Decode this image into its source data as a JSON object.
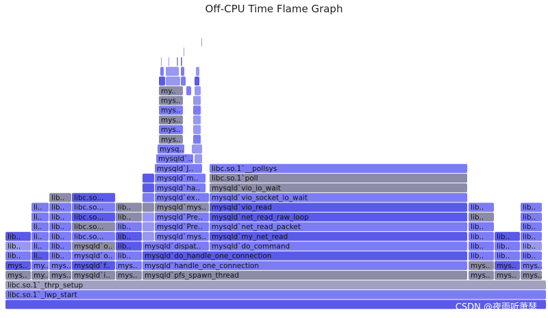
{
  "title": "Off-CPU Time Flame Graph",
  "watermark": "CSDN @夜雨听萧瑟",
  "colors": {
    "dark": "#5a5ae8",
    "mid": "#7c7cf5",
    "light": "#9898f0",
    "gray": "#8c8ca8",
    "gray2": "#a0a0c0"
  },
  "chart_data": {
    "type": "flamegraph",
    "title": "Off-CPU Time Flame Graph",
    "total_width": 800,
    "frames": [
      {
        "d": 0,
        "s": 8,
        "w": 790,
        "label": "",
        "c": "dark"
      },
      {
        "d": 1,
        "s": 8,
        "w": 790,
        "label": "libc.so.1`_lwp_start",
        "c": "mid"
      },
      {
        "d": 2,
        "s": 8,
        "w": 790,
        "label": "libc.so.1`_thrp_setup",
        "c": "gray2"
      },
      {
        "d": 3,
        "s": 8,
        "w": 38,
        "label": "mys..",
        "c": "gray"
      },
      {
        "d": 3,
        "s": 46,
        "w": 26,
        "label": "my..",
        "c": "gray"
      },
      {
        "d": 3,
        "s": 72,
        "w": 33,
        "label": "mys..",
        "c": "gray"
      },
      {
        "d": 3,
        "s": 105,
        "w": 64,
        "label": "mysqld`i..",
        "c": "gray"
      },
      {
        "d": 3,
        "s": 169,
        "w": 39,
        "label": "mys..",
        "c": "gray"
      },
      {
        "d": 3,
        "s": 208,
        "w": 475,
        "label": "mysqld`pfs_spawn_thread",
        "c": "gray"
      },
      {
        "d": 3,
        "s": 684,
        "w": 38,
        "label": "mys..",
        "c": "gray"
      },
      {
        "d": 3,
        "s": 722,
        "w": 38,
        "label": "mys..",
        "c": "gray"
      },
      {
        "d": 3,
        "s": 760,
        "w": 32,
        "label": "mys..",
        "c": "gray"
      },
      {
        "d": 4,
        "s": 8,
        "w": 38,
        "label": "mys..",
        "c": "dark"
      },
      {
        "d": 4,
        "s": 46,
        "w": 26,
        "label": "my..",
        "c": "mid"
      },
      {
        "d": 4,
        "s": 72,
        "w": 33,
        "label": "mys..",
        "c": "mid"
      },
      {
        "d": 4,
        "s": 105,
        "w": 64,
        "label": "mysqld`f..",
        "c": "dark"
      },
      {
        "d": 4,
        "s": 169,
        "w": 39,
        "label": "mys..",
        "c": "mid"
      },
      {
        "d": 4,
        "s": 208,
        "w": 475,
        "label": "mysqld`handle_one_connection",
        "c": "mid"
      },
      {
        "d": 4,
        "s": 684,
        "w": 38,
        "label": "mys..",
        "c": "gray"
      },
      {
        "d": 4,
        "s": 722,
        "w": 38,
        "label": "mys..",
        "c": "dark"
      },
      {
        "d": 4,
        "s": 760,
        "w": 32,
        "label": "mys..",
        "c": "mid"
      },
      {
        "d": 5,
        "s": 8,
        "w": 38,
        "label": "lib..",
        "c": "mid"
      },
      {
        "d": 5,
        "s": 46,
        "w": 26,
        "label": "li..",
        "c": "dark"
      },
      {
        "d": 5,
        "s": 72,
        "w": 33,
        "label": "lib..",
        "c": "mid"
      },
      {
        "d": 5,
        "s": 105,
        "w": 64,
        "label": "mysqld`o..",
        "c": "mid"
      },
      {
        "d": 5,
        "s": 169,
        "w": 39,
        "label": "lib..",
        "c": "mid"
      },
      {
        "d": 5,
        "s": 208,
        "w": 475,
        "label": "mysqld`do_handle_one_connection",
        "c": "dark"
      },
      {
        "d": 5,
        "s": 684,
        "w": 38,
        "label": "lib..",
        "c": "mid"
      },
      {
        "d": 5,
        "s": 722,
        "w": 38,
        "label": "lib..",
        "c": "mid"
      },
      {
        "d": 5,
        "s": 760,
        "w": 32,
        "label": "lib..",
        "c": "mid"
      },
      {
        "d": 6,
        "s": 8,
        "w": 38,
        "label": "lib..",
        "c": "light"
      },
      {
        "d": 6,
        "s": 46,
        "w": 26,
        "label": "li..",
        "c": "mid"
      },
      {
        "d": 6,
        "s": 72,
        "w": 33,
        "label": "lib..",
        "c": "mid"
      },
      {
        "d": 6,
        "s": 105,
        "w": 64,
        "label": "mysqld`o..",
        "c": "gray"
      },
      {
        "d": 6,
        "s": 169,
        "w": 39,
        "label": "lib..",
        "c": "dark"
      },
      {
        "d": 6,
        "s": 208,
        "w": 98,
        "label": "mysqld`dispat..",
        "c": "mid"
      },
      {
        "d": 6,
        "s": 306,
        "w": 377,
        "label": "mysqld`do_command",
        "c": "mid"
      },
      {
        "d": 6,
        "s": 684,
        "w": 38,
        "label": "lib..",
        "c": "mid"
      },
      {
        "d": 6,
        "s": 722,
        "w": 38,
        "label": "lib..",
        "c": "mid"
      },
      {
        "d": 6,
        "s": 760,
        "w": 32,
        "label": "lib..",
        "c": "light"
      },
      {
        "d": 7,
        "s": 8,
        "w": 38,
        "label": "lib..",
        "c": "dark"
      },
      {
        "d": 7,
        "s": 46,
        "w": 26,
        "label": "li..",
        "c": "mid"
      },
      {
        "d": 7,
        "s": 72,
        "w": 33,
        "label": "lib..",
        "c": "mid"
      },
      {
        "d": 7,
        "s": 105,
        "w": 64,
        "label": "libc.so...",
        "c": "mid"
      },
      {
        "d": 7,
        "s": 169,
        "w": 39,
        "label": "lib..",
        "c": "dark"
      },
      {
        "d": 7,
        "s": 208,
        "w": 18,
        "label": "",
        "c": "light"
      },
      {
        "d": 7,
        "s": 226,
        "w": 80,
        "label": "mysqld`mys..",
        "c": "mid"
      },
      {
        "d": 7,
        "s": 306,
        "w": 377,
        "label": "mysqld`my_net_read",
        "c": "dark"
      },
      {
        "d": 7,
        "s": 684,
        "w": 38,
        "label": "lib..",
        "c": "mid"
      },
      {
        "d": 7,
        "s": 722,
        "w": 38,
        "label": "lib..",
        "c": "dark"
      },
      {
        "d": 7,
        "s": 760,
        "w": 32,
        "label": "lib..",
        "c": "mid"
      },
      {
        "d": 8,
        "s": 46,
        "w": 26,
        "label": "li..",
        "c": "mid"
      },
      {
        "d": 8,
        "s": 72,
        "w": 33,
        "label": "lib..",
        "c": "mid"
      },
      {
        "d": 8,
        "s": 105,
        "w": 64,
        "label": "libc.so...",
        "c": "gray"
      },
      {
        "d": 8,
        "s": 169,
        "w": 39,
        "label": "lib..",
        "c": "mid"
      },
      {
        "d": 8,
        "s": 208,
        "w": 18,
        "label": "",
        "c": "light"
      },
      {
        "d": 8,
        "s": 226,
        "w": 80,
        "label": "mysqld`Pre..",
        "c": "mid"
      },
      {
        "d": 8,
        "s": 306,
        "w": 377,
        "label": "mysqld`net_read_packet",
        "c": "mid"
      },
      {
        "d": 8,
        "s": 684,
        "w": 38,
        "label": "lib..",
        "c": "mid"
      },
      {
        "d": 8,
        "s": 760,
        "w": 32,
        "label": "lib..",
        "c": "mid"
      },
      {
        "d": 9,
        "s": 46,
        "w": 26,
        "label": "li..",
        "c": "mid"
      },
      {
        "d": 9,
        "s": 72,
        "w": 33,
        "label": "lib..",
        "c": "mid"
      },
      {
        "d": 9,
        "s": 105,
        "w": 64,
        "label": "libc.so...",
        "c": "dark"
      },
      {
        "d": 9,
        "s": 169,
        "w": 39,
        "label": "lib..",
        "c": "gray"
      },
      {
        "d": 9,
        "s": 208,
        "w": 18,
        "label": "",
        "c": "light"
      },
      {
        "d": 9,
        "s": 226,
        "w": 80,
        "label": "mysqld`Pre..",
        "c": "mid"
      },
      {
        "d": 9,
        "s": 306,
        "w": 377,
        "label": "mysqld`net_read_raw_loop",
        "c": "dark"
      },
      {
        "d": 9,
        "s": 684,
        "w": 38,
        "label": "lib..",
        "c": "gray"
      },
      {
        "d": 9,
        "s": 760,
        "w": 32,
        "label": "lib..",
        "c": "mid"
      },
      {
        "d": 10,
        "s": 46,
        "w": 26,
        "label": "li..",
        "c": "mid"
      },
      {
        "d": 10,
        "s": 72,
        "w": 33,
        "label": "lib..",
        "c": "mid"
      },
      {
        "d": 10,
        "s": 105,
        "w": 64,
        "label": "libc.so...",
        "c": "mid"
      },
      {
        "d": 10,
        "s": 169,
        "w": 39,
        "label": "lib..",
        "c": "gray"
      },
      {
        "d": 10,
        "s": 208,
        "w": 18,
        "label": "",
        "c": "gray"
      },
      {
        "d": 10,
        "s": 226,
        "w": 80,
        "label": "mysqld`mys..",
        "c": "gray"
      },
      {
        "d": 10,
        "s": 306,
        "w": 377,
        "label": "mysqld`vio_read",
        "c": "dark"
      },
      {
        "d": 10,
        "s": 684,
        "w": 38,
        "label": "lib..",
        "c": "mid"
      },
      {
        "d": 10,
        "s": 760,
        "w": 32,
        "label": "lib..",
        "c": "mid"
      },
      {
        "d": 11,
        "s": 72,
        "w": 33,
        "label": "lib..",
        "c": "gray"
      },
      {
        "d": 11,
        "s": 105,
        "w": 64,
        "label": "libc.so...",
        "c": "dark"
      },
      {
        "d": 11,
        "s": 208,
        "w": 18,
        "label": "",
        "c": "mid"
      },
      {
        "d": 11,
        "s": 226,
        "w": 80,
        "label": "mysqld`ex..",
        "c": "mid"
      },
      {
        "d": 11,
        "s": 306,
        "w": 377,
        "label": "mysqld`vio_socket_io_wait",
        "c": "mid"
      },
      {
        "d": 12,
        "s": 208,
        "w": 18,
        "label": "",
        "c": "dark"
      },
      {
        "d": 12,
        "s": 226,
        "w": 75,
        "label": "mysqld`ha..",
        "c": "mid"
      },
      {
        "d": 12,
        "s": 306,
        "w": 377,
        "label": "mysqld`vio_io_wait",
        "c": "gray"
      },
      {
        "d": 13,
        "s": 208,
        "w": 18,
        "label": "",
        "c": "dark"
      },
      {
        "d": 13,
        "s": 226,
        "w": 75,
        "label": "mysqld`m..",
        "c": "mid"
      },
      {
        "d": 13,
        "s": 306,
        "w": 377,
        "label": "libc.so.1`poll",
        "c": "gray"
      },
      {
        "d": 14,
        "s": 226,
        "w": 70,
        "label": "mysqld`J..",
        "c": "mid"
      },
      {
        "d": 14,
        "s": 306,
        "w": 377,
        "label": "libc.so.1`__pollsys",
        "c": "mid"
      },
      {
        "d": 15,
        "s": 228,
        "w": 55,
        "label": "mysqld`..",
        "c": "mid"
      },
      {
        "d": 15,
        "s": 284,
        "w": 12,
        "label": "",
        "c": "light"
      },
      {
        "d": 16,
        "s": 230,
        "w": 40,
        "label": "mysq..",
        "c": "mid"
      },
      {
        "d": 16,
        "s": 280,
        "w": 16,
        "label": "",
        "c": "light"
      },
      {
        "d": 17,
        "s": 232,
        "w": 36,
        "label": "mys..",
        "c": "gray"
      },
      {
        "d": 17,
        "s": 282,
        "w": 12,
        "label": "",
        "c": "mid"
      },
      {
        "d": 18,
        "s": 232,
        "w": 36,
        "label": "mys..",
        "c": "mid"
      },
      {
        "d": 18,
        "s": 282,
        "w": 12,
        "label": "",
        "c": "light"
      },
      {
        "d": 19,
        "s": 232,
        "w": 36,
        "label": "mys..",
        "c": "gray"
      },
      {
        "d": 19,
        "s": 282,
        "w": 12,
        "label": "",
        "c": "light"
      },
      {
        "d": 20,
        "s": 232,
        "w": 36,
        "label": "mys..",
        "c": "mid"
      },
      {
        "d": 20,
        "s": 282,
        "w": 12,
        "label": "",
        "c": "mid"
      },
      {
        "d": 21,
        "s": 232,
        "w": 36,
        "label": "mys..",
        "c": "gray"
      },
      {
        "d": 21,
        "s": 282,
        "w": 12,
        "label": "",
        "c": "light"
      },
      {
        "d": 22,
        "s": 232,
        "w": 36,
        "label": "my..",
        "c": "gray"
      },
      {
        "d": 22,
        "s": 272,
        "w": 8,
        "label": "",
        "c": "mid"
      },
      {
        "d": 22,
        "s": 284,
        "w": 10,
        "label": "",
        "c": "light"
      },
      {
        "d": 23,
        "s": 232,
        "w": 10,
        "label": "",
        "c": "dark"
      },
      {
        "d": 23,
        "s": 242,
        "w": 22,
        "label": "",
        "c": "light"
      },
      {
        "d": 23,
        "s": 264,
        "w": 8,
        "label": "",
        "c": "mid"
      },
      {
        "d": 23,
        "s": 284,
        "w": 8,
        "label": "",
        "c": "dark"
      },
      {
        "d": 24,
        "s": 234,
        "w": 6,
        "label": "",
        "c": "mid"
      },
      {
        "d": 24,
        "s": 242,
        "w": 20,
        "label": "",
        "c": "light"
      },
      {
        "d": 24,
        "s": 264,
        "w": 6,
        "label": "",
        "c": "mid"
      },
      {
        "d": 24,
        "s": 286,
        "w": 6,
        "label": "",
        "c": "light"
      },
      {
        "d": 25,
        "s": 235,
        "w": 2,
        "label": "",
        "c": "light"
      },
      {
        "d": 25,
        "s": 246,
        "w": 2,
        "label": "",
        "c": "light"
      },
      {
        "d": 25,
        "s": 258,
        "w": 3,
        "label": "",
        "c": "light"
      },
      {
        "d": 25,
        "s": 264,
        "w": 3,
        "label": "",
        "c": "mid"
      },
      {
        "d": 26,
        "s": 268,
        "w": 2,
        "label": "",
        "c": "light"
      },
      {
        "d": 27,
        "s": 294,
        "w": 2,
        "label": "",
        "c": "light"
      }
    ]
  }
}
